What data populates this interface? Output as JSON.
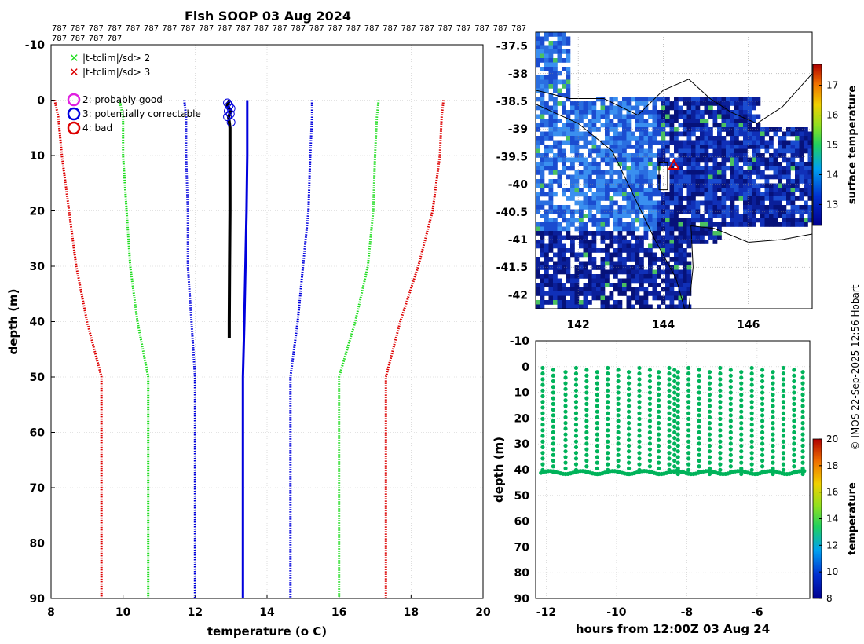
{
  "title": "Fish SOOP 03 Aug 2024",
  "drop_label": "787",
  "credit": "© IMOS 22-Sep-2025 12:56 Hobart",
  "legend": {
    "x_green": "|t-tclim|/sd> 2",
    "x_red": "|t-tclim|/sd> 3",
    "flag2": "2: probably good",
    "flag3": "3: potentially correctable",
    "flag4": "4: bad"
  },
  "colors": {
    "red": "#dd0000",
    "green": "#22dd22",
    "blue": "#0000dd",
    "profile": "#000000",
    "scatter": "#00b35a",
    "grid": "#c8c8c8",
    "ocean_cold": "#0a1a8c",
    "ocean_warm": "#2a8ae0",
    "land": "#ffffff"
  },
  "chart_data": [
    {
      "type": "line",
      "name": "profile",
      "title": "Fish SOOP 03 Aug 2024",
      "xlabel": "temperature (o C)",
      "ylabel": "depth (m)",
      "xlim": [
        8,
        20
      ],
      "ylim": [
        -10,
        90
      ],
      "xticks": [
        8,
        10,
        12,
        14,
        16,
        18,
        20
      ],
      "yticks": [
        -10,
        0,
        10,
        20,
        30,
        40,
        50,
        60,
        70,
        80,
        90
      ],
      "grid": true,
      "series": [
        {
          "name": "clim-3sd",
          "color": "red",
          "style": "dotted",
          "depth": [
            0,
            3,
            10,
            20,
            30,
            40,
            50,
            60,
            70,
            80,
            90
          ],
          "temp": [
            8.1,
            8.2,
            8.3,
            8.5,
            8.7,
            9.0,
            9.4,
            9.4,
            9.4,
            9.4,
            9.4
          ]
        },
        {
          "name": "clim-2sd",
          "color": "green",
          "style": "dotted",
          "depth": [
            0,
            3,
            10,
            20,
            30,
            40,
            50,
            60,
            70,
            80,
            90
          ],
          "temp": [
            9.9,
            10.0,
            10.0,
            10.1,
            10.2,
            10.4,
            10.7,
            10.7,
            10.7,
            10.7,
            10.7
          ]
        },
        {
          "name": "clim-1sd",
          "color": "blue",
          "style": "dotted",
          "depth": [
            0,
            3,
            10,
            20,
            30,
            40,
            50,
            60,
            70,
            80,
            90
          ],
          "temp": [
            11.7,
            11.75,
            11.75,
            11.8,
            11.8,
            11.9,
            12.0,
            12.0,
            12.0,
            12.0,
            12.0
          ]
        },
        {
          "name": "climatology",
          "color": "blue",
          "style": "solid",
          "depth": [
            0,
            10,
            20,
            30,
            40,
            50,
            60,
            70,
            80,
            90
          ],
          "temp": [
            13.45,
            13.45,
            13.43,
            13.4,
            13.37,
            13.33,
            13.33,
            13.33,
            13.33,
            13.33
          ]
        },
        {
          "name": "clim+1sd",
          "color": "blue",
          "style": "dotted",
          "depth": [
            0,
            3,
            10,
            20,
            30,
            40,
            50,
            60,
            70,
            80,
            90
          ],
          "temp": [
            15.25,
            15.25,
            15.2,
            15.15,
            15.0,
            14.85,
            14.65,
            14.65,
            14.65,
            14.65,
            14.65
          ]
        },
        {
          "name": "clim+2sd",
          "color": "green",
          "style": "dotted",
          "depth": [
            0,
            3,
            10,
            20,
            30,
            40,
            50,
            60,
            70,
            80,
            90
          ],
          "temp": [
            17.1,
            17.05,
            17.0,
            16.95,
            16.8,
            16.45,
            16.0,
            16.0,
            16.0,
            16.0,
            16.0
          ]
        },
        {
          "name": "clim+3sd",
          "color": "red",
          "style": "dotted",
          "depth": [
            0,
            3,
            10,
            20,
            30,
            40,
            50,
            60,
            70,
            80,
            90
          ],
          "temp": [
            18.9,
            18.85,
            18.8,
            18.6,
            18.2,
            17.7,
            17.3,
            17.3,
            17.3,
            17.3,
            17.3
          ]
        },
        {
          "name": "observed",
          "color": "profile",
          "style": "solid",
          "depth": [
            0,
            1,
            2,
            3,
            5,
            10,
            20,
            30,
            40,
            43
          ],
          "temp": [
            12.95,
            12.9,
            13.0,
            12.93,
            12.97,
            12.97,
            12.97,
            12.96,
            12.95,
            12.95
          ]
        }
      ],
      "flag_markers": {
        "flag": 3,
        "temp": [
          12.9,
          12.95,
          13.0,
          12.92,
          12.98,
          12.9,
          13.0
        ],
        "depth": [
          0.5,
          1.0,
          1.5,
          2.0,
          2.5,
          3.0,
          4.0
        ]
      }
    },
    {
      "type": "heatmap",
      "name": "sst_map",
      "colorbar_label": "surface temperature",
      "xticks": [
        142,
        144,
        146
      ],
      "yticks": [
        -37.5,
        -38,
        -38.5,
        -39,
        -39.5,
        -40,
        -40.5,
        -41,
        -41.5,
        -42
      ],
      "xlim": [
        141,
        147.5
      ],
      "ylim": [
        -42.25,
        -37.25
      ],
      "clim": [
        12.3,
        17.7
      ],
      "cticks": [
        13,
        14,
        15,
        16,
        17
      ],
      "marker": {
        "lon": 144.25,
        "lat": -39.65
      }
    },
    {
      "type": "scatter",
      "name": "timeseries",
      "xlabel": "hours from 12:00Z 03 Aug 24",
      "ylabel": "depth (m)",
      "xlim": [
        -12.3,
        -4.5
      ],
      "ylim": [
        -10,
        90
      ],
      "xticks": [
        -12,
        -10,
        -8,
        -6
      ],
      "yticks": [
        -10,
        0,
        10,
        20,
        30,
        40,
        50,
        60,
        70,
        80,
        90
      ],
      "clim": [
        8,
        20
      ],
      "cticks": [
        8,
        10,
        12,
        14,
        16,
        18,
        20
      ],
      "colorbar_label": "temperature",
      "profile_times": [
        -12.1,
        -11.8,
        -11.45,
        -11.15,
        -10.85,
        -10.55,
        -10.25,
        -9.95,
        -9.65,
        -9.35,
        -9.05,
        -8.8,
        -8.5,
        -8.35,
        -8.25,
        -7.95,
        -7.65,
        -7.35,
        -7.05,
        -6.75,
        -6.45,
        -6.15,
        -5.85,
        -5.55,
        -5.25,
        -4.95,
        -4.7
      ],
      "depth_range": [
        0,
        42
      ],
      "temp_value": 13
    }
  ]
}
